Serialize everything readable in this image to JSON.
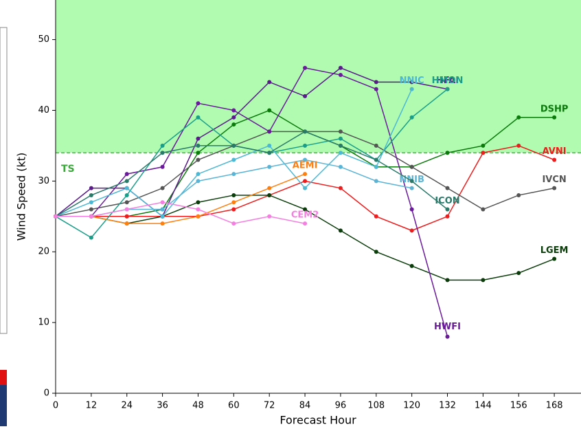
{
  "chart_data": {
    "type": "line",
    "xlabel": "Forecast Hour",
    "ylabel": "Wind Speed (kt)",
    "x": [
      0,
      12,
      24,
      36,
      48,
      60,
      72,
      84,
      96,
      108,
      120,
      132,
      144,
      156,
      168
    ],
    "xlim": [
      0,
      177
    ],
    "ylim": [
      0,
      55.6
    ],
    "xticks": [
      0,
      12,
      24,
      36,
      48,
      60,
      72,
      84,
      96,
      108,
      120,
      132,
      144,
      156,
      168
    ],
    "yticks": [
      0,
      10,
      20,
      30,
      40,
      50
    ],
    "threshold": {
      "value": 34,
      "label": "TS",
      "color": "#3aa83a",
      "fill": "#b0fbb0"
    },
    "series": [
      {
        "name": "DSHP",
        "color": "#0a7a0a",
        "values": [
          25,
          25,
          25,
          26,
          34,
          38,
          40,
          37,
          35,
          32,
          32,
          34,
          35,
          39,
          39
        ]
      },
      {
        "name": "AVNI",
        "color": "#ee1c1c",
        "values": [
          25,
          25,
          25,
          25,
          25,
          26,
          28,
          30,
          29,
          25,
          23,
          25,
          34,
          35,
          33
        ]
      },
      {
        "name": "IVCN",
        "color": "#555555",
        "values": [
          25,
          26,
          27,
          29,
          33,
          35,
          37,
          37,
          37,
          35,
          32,
          29,
          26,
          28,
          29
        ]
      },
      {
        "name": "LGEM",
        "color": "#0b3d0b",
        "values": [
          25,
          25,
          24,
          25,
          27,
          28,
          28,
          26,
          23,
          20,
          18,
          16,
          16,
          17,
          19
        ]
      },
      {
        "name": "HWFI",
        "color": "#6a1a9a",
        "values": [
          25,
          25,
          31,
          32,
          41,
          40,
          37,
          46,
          45,
          43,
          26,
          8,
          null,
          null,
          null
        ]
      },
      {
        "name": "HFAI",
        "color": "#5a1a8a",
        "values": [
          25,
          29,
          29,
          25,
          36,
          39,
          44,
          42,
          46,
          44,
          44,
          43,
          null,
          null,
          null
        ]
      },
      {
        "name": "HMON",
        "color": "#1a9e8a",
        "values": [
          25,
          22,
          28,
          35,
          39,
          35,
          34,
          35,
          36,
          33,
          39,
          43,
          null,
          null,
          null
        ]
      },
      {
        "name": "NNIC",
        "color": "#4db8d4",
        "values": [
          25,
          27,
          29,
          25,
          31,
          33,
          35,
          29,
          34,
          32,
          43,
          null,
          null,
          null,
          null
        ]
      },
      {
        "name": "NNIB",
        "color": "#5ab4d6",
        "values": [
          25,
          25,
          26,
          26,
          30,
          31,
          32,
          33,
          32,
          30,
          29,
          null,
          null,
          null,
          null
        ]
      },
      {
        "name": "ICON",
        "color": "#2a7a6a",
        "values": [
          25,
          28,
          30,
          34,
          35,
          35,
          34,
          37,
          35,
          33,
          30,
          26,
          null,
          null,
          null
        ]
      },
      {
        "name": "AEMI",
        "color": "#ff7f0e",
        "values": [
          25,
          25,
          24,
          24,
          25,
          27,
          29,
          31,
          null,
          null,
          null,
          null,
          null,
          null,
          null
        ]
      },
      {
        "name": "CEM2",
        "color": "#f47fe0",
        "values": [
          25,
          25,
          26,
          27,
          26,
          24,
          25,
          24,
          null,
          null,
          null,
          null,
          null,
          null,
          null
        ]
      }
    ]
  }
}
